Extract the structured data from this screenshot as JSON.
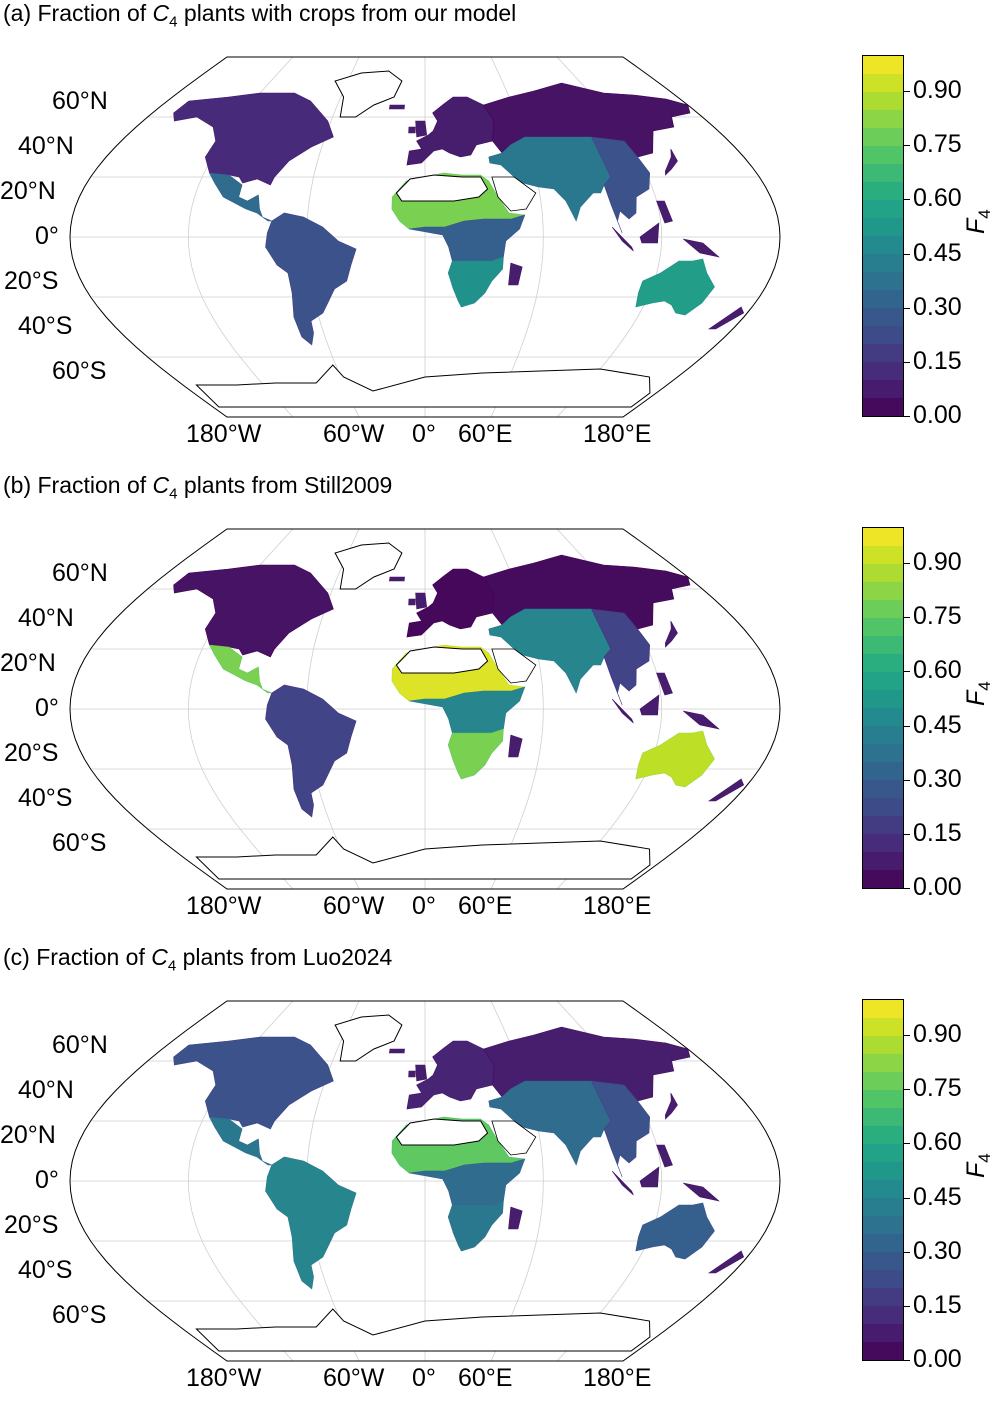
{
  "legend": {
    "variable": "F",
    "variable_subscript": "4",
    "ticks": [
      "0.00",
      "0.15",
      "0.30",
      "0.45",
      "0.60",
      "0.75",
      "0.90"
    ],
    "tick_values": [
      0.0,
      0.15,
      0.3,
      0.45,
      0.6,
      0.75,
      0.9
    ],
    "range": [
      0.0,
      1.0
    ],
    "levels": 20,
    "colormap": "viridis"
  },
  "axes": {
    "lat_labels": [
      "60°N",
      "40°N",
      "20°N",
      "0°",
      "20°S",
      "40°S",
      "60°S"
    ],
    "lat_values": [
      60,
      40,
      20,
      0,
      -20,
      -40,
      -60
    ],
    "lon_labels": [
      "180°W",
      "60°W",
      "0°",
      "60°E",
      "180°E"
    ],
    "lon_values": [
      -180,
      -60,
      0,
      60,
      180
    ]
  },
  "colors": {
    "ocean": "#ffffff",
    "low": "#440154",
    "mid": "#21918c",
    "high": "#fde725",
    "grid": "#cfcfcf"
  },
  "panels": [
    {
      "title_prefix": "(a) Fraction of ",
      "title_var": "C",
      "title_sub": "4",
      "title_suffix": " plants with crops from our model",
      "regions": [
        {
          "name": "North America",
          "fraction": 0.12
        },
        {
          "name": "Central America",
          "fraction": 0.35
        },
        {
          "name": "South America",
          "fraction": 0.25
        },
        {
          "name": "Europe",
          "fraction": 0.08
        },
        {
          "name": "Sahel",
          "fraction": 0.8
        },
        {
          "name": "Central Africa",
          "fraction": 0.3
        },
        {
          "name": "Southern Africa",
          "fraction": 0.5
        },
        {
          "name": "Russia",
          "fraction": 0.05
        },
        {
          "name": "India",
          "fraction": 0.4
        },
        {
          "name": "Southeast Asia",
          "fraction": 0.25
        },
        {
          "name": "Australia",
          "fraction": 0.55
        },
        {
          "name": "Greenland",
          "fraction": 0.0
        },
        {
          "name": "Antarctica",
          "fraction": 0.0
        }
      ]
    },
    {
      "title_prefix": "(b) Fraction of ",
      "title_var": "C",
      "title_sub": "4",
      "title_suffix": " plants from Still2009",
      "regions": [
        {
          "name": "North America",
          "fraction": 0.05
        },
        {
          "name": "Central America",
          "fraction": 0.8
        },
        {
          "name": "South America",
          "fraction": 0.2
        },
        {
          "name": "Europe",
          "fraction": 0.02
        },
        {
          "name": "Sahel",
          "fraction": 0.95
        },
        {
          "name": "Central Africa",
          "fraction": 0.45
        },
        {
          "name": "Southern Africa",
          "fraction": 0.8
        },
        {
          "name": "Russia",
          "fraction": 0.03
        },
        {
          "name": "India",
          "fraction": 0.45
        },
        {
          "name": "Southeast Asia",
          "fraction": 0.2
        },
        {
          "name": "Australia",
          "fraction": 0.9
        },
        {
          "name": "Greenland",
          "fraction": 0.0
        },
        {
          "name": "Antarctica",
          "fraction": 0.0
        }
      ]
    },
    {
      "title_prefix": "(c) Fraction of ",
      "title_var": "C",
      "title_sub": "4",
      "title_suffix": " plants from Luo2024",
      "regions": [
        {
          "name": "North America",
          "fraction": 0.25
        },
        {
          "name": "Central America",
          "fraction": 0.4
        },
        {
          "name": "South America",
          "fraction": 0.45
        },
        {
          "name": "Europe",
          "fraction": 0.1
        },
        {
          "name": "Sahel",
          "fraction": 0.75
        },
        {
          "name": "Central Africa",
          "fraction": 0.35
        },
        {
          "name": "Southern Africa",
          "fraction": 0.4
        },
        {
          "name": "Russia",
          "fraction": 0.08
        },
        {
          "name": "India",
          "fraction": 0.35
        },
        {
          "name": "Southeast Asia",
          "fraction": 0.25
        },
        {
          "name": "Australia",
          "fraction": 0.3
        },
        {
          "name": "Greenland",
          "fraction": 0.0
        },
        {
          "name": "Antarctica",
          "fraction": 0.0
        }
      ]
    }
  ]
}
